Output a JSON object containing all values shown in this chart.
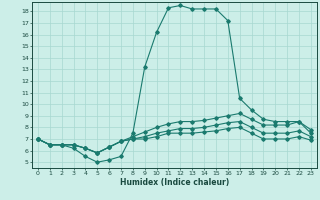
{
  "xlabel": "Humidex (Indice chaleur)",
  "ylabel": "",
  "background_color": "#cceee8",
  "line_color": "#1a7a6e",
  "xlim": [
    -0.5,
    23.5
  ],
  "ylim": [
    4.5,
    18.8
  ],
  "yticks": [
    5,
    6,
    7,
    8,
    9,
    10,
    11,
    12,
    13,
    14,
    15,
    16,
    17,
    18
  ],
  "xticks": [
    0,
    1,
    2,
    3,
    4,
    5,
    6,
    7,
    8,
    9,
    10,
    11,
    12,
    13,
    14,
    15,
    16,
    17,
    18,
    19,
    20,
    21,
    22,
    23
  ],
  "lines": [
    {
      "x": [
        0,
        1,
        2,
        3,
        4,
        5,
        6,
        7,
        8,
        9,
        10,
        11,
        12,
        13,
        14,
        15,
        16,
        17,
        18,
        19,
        20,
        21,
        22,
        23
      ],
      "y": [
        7,
        6.5,
        6.5,
        6.2,
        5.5,
        5.0,
        5.2,
        5.5,
        7.5,
        13.2,
        16.2,
        18.3,
        18.5,
        18.2,
        18.2,
        18.2,
        17.2,
        10.5,
        9.5,
        8.7,
        8.5,
        8.5,
        8.5,
        7.5
      ]
    },
    {
      "x": [
        0,
        1,
        2,
        3,
        4,
        5,
        6,
        7,
        8,
        9,
        10,
        11,
        12,
        13,
        14,
        15,
        16,
        17,
        18,
        19,
        20,
        21,
        22,
        23
      ],
      "y": [
        7,
        6.5,
        6.5,
        6.5,
        6.2,
        5.8,
        6.3,
        6.8,
        7.2,
        7.6,
        8.0,
        8.3,
        8.5,
        8.5,
        8.6,
        8.8,
        9.0,
        9.2,
        8.7,
        8.2,
        8.2,
        8.2,
        8.5,
        7.8
      ]
    },
    {
      "x": [
        0,
        1,
        2,
        3,
        4,
        5,
        6,
        7,
        8,
        9,
        10,
        11,
        12,
        13,
        14,
        15,
        16,
        17,
        18,
        19,
        20,
        21,
        22,
        23
      ],
      "y": [
        7,
        6.5,
        6.5,
        6.5,
        6.2,
        5.8,
        6.3,
        6.8,
        7.0,
        7.2,
        7.5,
        7.7,
        7.9,
        7.9,
        8.0,
        8.2,
        8.4,
        8.5,
        8.0,
        7.5,
        7.5,
        7.5,
        7.7,
        7.2
      ]
    },
    {
      "x": [
        0,
        1,
        2,
        3,
        4,
        5,
        6,
        7,
        8,
        9,
        10,
        11,
        12,
        13,
        14,
        15,
        16,
        17,
        18,
        19,
        20,
        21,
        22,
        23
      ],
      "y": [
        7,
        6.5,
        6.5,
        6.5,
        6.2,
        5.8,
        6.3,
        6.8,
        7.0,
        7.0,
        7.2,
        7.5,
        7.5,
        7.5,
        7.6,
        7.7,
        7.9,
        8.0,
        7.5,
        7.0,
        7.0,
        7.0,
        7.2,
        6.9
      ]
    }
  ]
}
